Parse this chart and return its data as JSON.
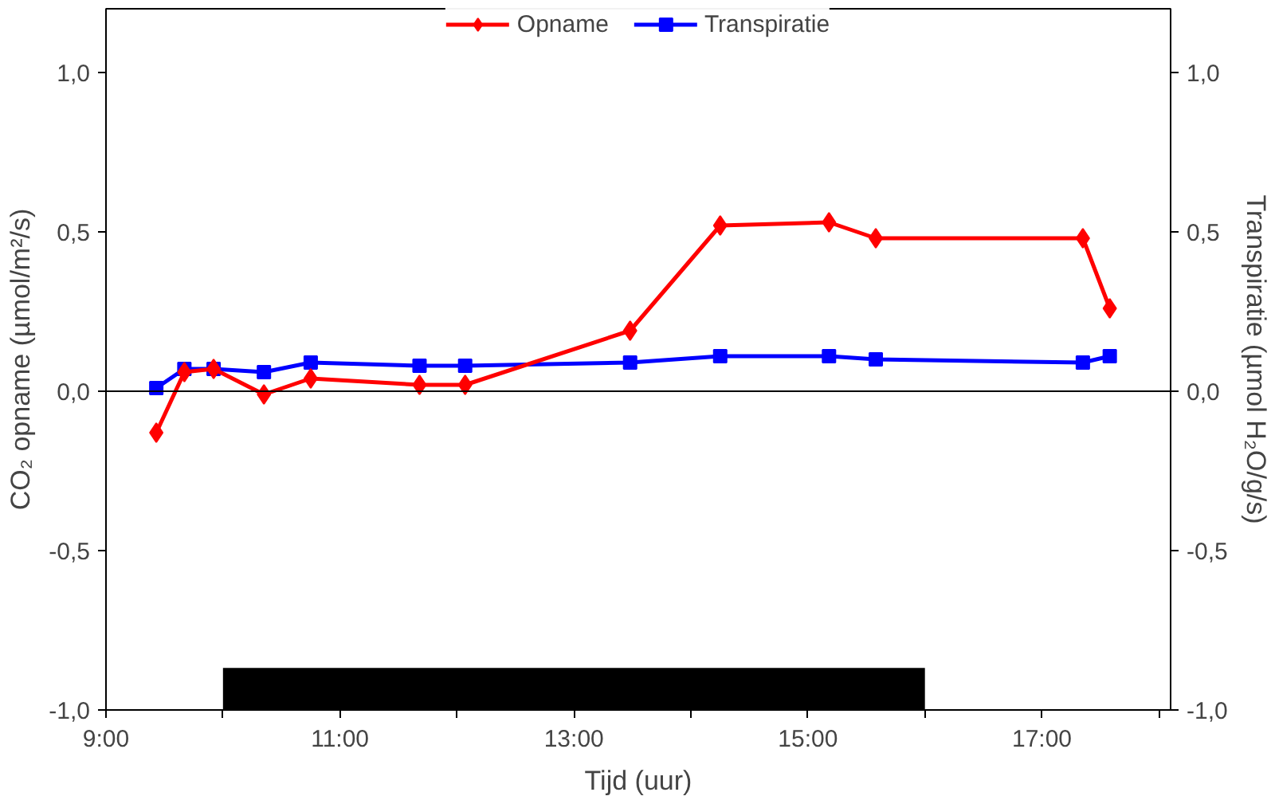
{
  "chart_data": {
    "type": "line",
    "xlabel": "Tijd (uur)",
    "ylabel": "CO₂ opname (µmol/m²/s)",
    "y2label": "Transpiratie (µmol H₂O/g/s)",
    "x": [
      9.43,
      9.67,
      9.92,
      10.35,
      10.75,
      11.68,
      12.07,
      13.48,
      14.25,
      15.18,
      15.58,
      17.35,
      17.58
    ],
    "series": [
      {
        "name": "Opname",
        "color": "#ff0000",
        "marker": "diamond",
        "values": [
          -0.13,
          0.06,
          0.07,
          -0.01,
          0.04,
          0.02,
          0.02,
          0.19,
          0.52,
          0.53,
          0.48,
          0.48,
          0.26
        ]
      },
      {
        "name": "Transpiratie",
        "color": "#0000ff",
        "marker": "square",
        "axis": "y2",
        "values": [
          0.01,
          0.07,
          0.07,
          0.06,
          0.09,
          0.08,
          0.08,
          0.09,
          0.11,
          0.11,
          0.1,
          0.09,
          0.11
        ]
      }
    ],
    "xlim": [
      9,
      18.1
    ],
    "ylim": [
      -1,
      1.2
    ],
    "y2lim": [
      -1,
      1.2
    ],
    "xticks": [
      {
        "value": 9,
        "label": "9:00"
      },
      {
        "value": 10,
        "label": null
      },
      {
        "value": 11,
        "label": "11:00"
      },
      {
        "value": 12,
        "label": null
      },
      {
        "value": 13,
        "label": "13:00"
      },
      {
        "value": 14,
        "label": null
      },
      {
        "value": 15,
        "label": "15:00"
      },
      {
        "value": 16,
        "label": null
      },
      {
        "value": 17,
        "label": "17:00"
      },
      {
        "value": 18,
        "label": null
      }
    ],
    "yticks": [
      {
        "value": -1,
        "label": "-1,0"
      },
      {
        "value": -0.5,
        "label": "-0,5"
      },
      {
        "value": 0,
        "label": "0,0"
      },
      {
        "value": 0.5,
        "label": "0,5"
      },
      {
        "value": 1,
        "label": "1,0"
      }
    ],
    "y2ticks": [
      {
        "value": -1,
        "label": "-1,0"
      },
      {
        "value": -0.5,
        "label": "-0,5"
      },
      {
        "value": 0,
        "label": "0,0"
      },
      {
        "value": 0.5,
        "label": "0,5"
      },
      {
        "value": 1,
        "label": "1,0"
      }
    ],
    "ref_lines": [
      {
        "axis": "y",
        "value": 0,
        "color": "#000000"
      }
    ],
    "bands": [
      {
        "axis": "x",
        "from": 10,
        "to": 16,
        "color": "#000000"
      }
    ],
    "grid": false,
    "legend": "top",
    "line_style": "solid"
  }
}
